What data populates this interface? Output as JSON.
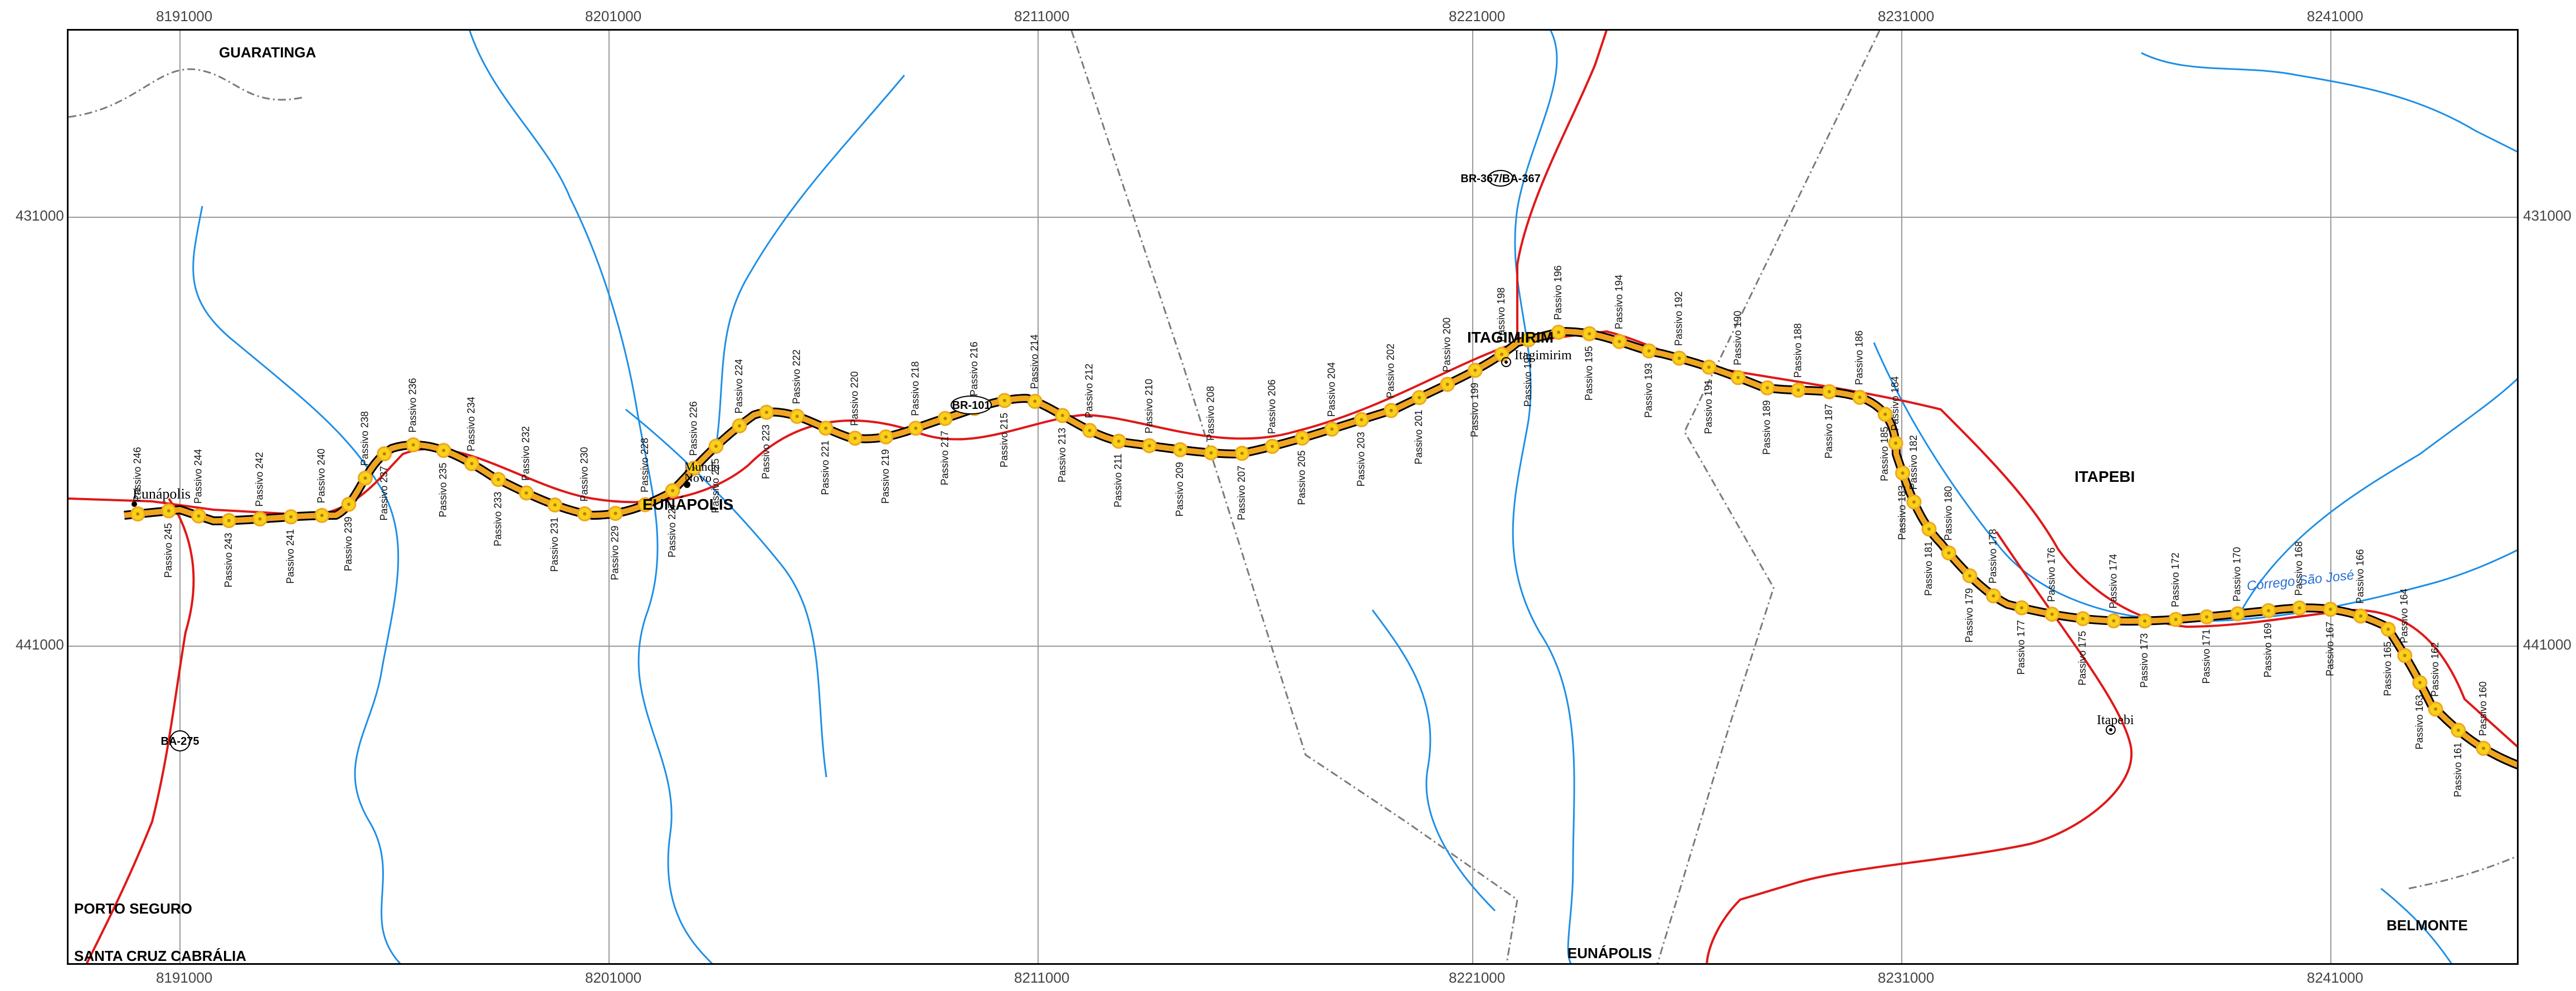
{
  "grid": {
    "x_labels": [
      "8191000",
      "8201000",
      "8211000",
      "8221000",
      "8231000",
      "8241000"
    ],
    "y_labels": [
      "431000",
      "441000"
    ]
  },
  "places": {
    "guaratinga": "GUARATINGA",
    "eunapolis_main": "EUNÁPOLIS",
    "eunapolis_bottom": "EUNÁPOLIS",
    "itagimirim": "ITAGIMIRIM",
    "itapebi": "ITAPEBI",
    "belmonte": "BELMONTE",
    "porto_seguro": "PORTO SEGURO",
    "santa_cruz": "SANTA CRUZ CABRÁLIA"
  },
  "towns": {
    "eunapolis": "Eunápolis",
    "mundo_novo_1": "Mundo",
    "mundo_novo_2": "Novo",
    "itagimirim": "Itagimirim",
    "itapebi": "Itapebi"
  },
  "roads": {
    "br101": "BR-101",
    "br367": "BR-367/BA-367",
    "ba275": "BA-275"
  },
  "river": "Córrego São José",
  "colors": {
    "highway": "#e01818",
    "river": "#1e8fe6",
    "route_fill": "#f0a520",
    "marker": "#f7d21a",
    "boundary": "#7a7a7a",
    "grid": "#9a9a9a"
  },
  "passivos": [
    "Passivo 246",
    "Passivo 245",
    "Passivo 244",
    "Passivo 243",
    "Passivo 242",
    "Passivo 241",
    "Passivo 240",
    "Passivo 239",
    "Passivo 238",
    "Passivo 237",
    "Passivo 236",
    "Passivo 235",
    "Passivo 234",
    "Passivo 233",
    "Passivo 232",
    "Passivo 231",
    "Passivo 230",
    "Passivo 229",
    "Passivo 228",
    "Passivo 227",
    "Passivo 226",
    "Passivo 225",
    "Passivo 224",
    "Passivo 223",
    "Passivo 222",
    "Passivo 221",
    "Passivo 220",
    "Passivo 219",
    "Passivo 218",
    "Passivo 217",
    "Passivo 216",
    "Passivo 215",
    "Passivo 214",
    "Passivo 213",
    "Passivo 212",
    "Passivo 211",
    "Passivo 210",
    "Passivo 209",
    "Passivo 208",
    "Passivo 207",
    "Passivo 206",
    "Passivo 205",
    "Passivo 204",
    "Passivo 203",
    "Passivo 202",
    "Passivo 201",
    "Passivo 200",
    "Passivo 199",
    "Passivo 198",
    "Passivo 197",
    "Passivo 196",
    "Passivo 195",
    "Passivo 194",
    "Passivo 193",
    "Passivo 192",
    "Passivo 191",
    "Passivo 190",
    "Passivo 189",
    "Passivo 188",
    "Passivo 187",
    "Passivo 186",
    "Passivo 185",
    "Passivo 184",
    "Passivo 183",
    "Passivo 182",
    "Passivo 181",
    "Passivo 180",
    "Passivo 179",
    "Passivo 178",
    "Passivo 177",
    "Passivo 176",
    "Passivo 175",
    "Passivo 174",
    "Passivo 173",
    "Passivo 172",
    "Passivo 171",
    "Passivo 170",
    "Passivo 169",
    "Passivo 168",
    "Passivo 167",
    "Passivo 166",
    "Passivo 165",
    "Passivo 164",
    "Passivo 163",
    "Passivo 162",
    "Passivo 161",
    "Passivo 160"
  ]
}
